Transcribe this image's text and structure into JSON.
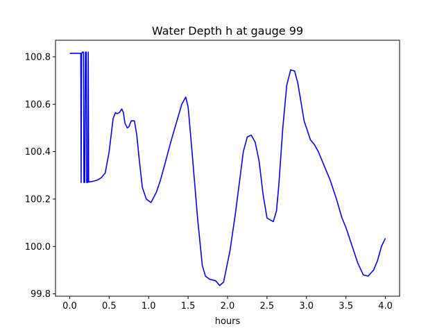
{
  "chart_data": {
    "type": "line",
    "title": "Water Depth h at gauge 99",
    "xlabel": "hours",
    "ylabel": "",
    "xlim": [
      -0.18,
      4.18
    ],
    "ylim": [
      99.79,
      100.87
    ],
    "xticks": [
      0.0,
      0.5,
      1.0,
      1.5,
      2.0,
      2.5,
      3.0,
      3.5,
      4.0
    ],
    "xtick_labels": [
      "0.0",
      "0.5",
      "1.0",
      "1.5",
      "2.0",
      "2.5",
      "3.0",
      "3.5",
      "4.0"
    ],
    "yticks": [
      99.8,
      100.0,
      100.2,
      100.4,
      100.6,
      100.8
    ],
    "ytick_labels": [
      "99.8",
      "100.0",
      "100.2",
      "100.4",
      "100.6",
      "100.8"
    ],
    "grid": false,
    "color": "#0000ff",
    "series": [
      {
        "name": "",
        "x": [
          0.0,
          0.14,
          0.145,
          0.15,
          0.155,
          0.16,
          0.175,
          0.18,
          0.19,
          0.2,
          0.21,
          0.215,
          0.23,
          0.235,
          0.24,
          0.3,
          0.35,
          0.4,
          0.45,
          0.5,
          0.55,
          0.58,
          0.6,
          0.63,
          0.66,
          0.68,
          0.7,
          0.73,
          0.75,
          0.78,
          0.82,
          0.85,
          0.88,
          0.92,
          0.97,
          1.03,
          1.1,
          1.15,
          1.2,
          1.28,
          1.35,
          1.42,
          1.47,
          1.5,
          1.55,
          1.62,
          1.68,
          1.72,
          1.77,
          1.85,
          1.9,
          1.95,
          2.03,
          2.1,
          2.2,
          2.25,
          2.3,
          2.35,
          2.4,
          2.45,
          2.5,
          2.55,
          2.58,
          2.62,
          2.65,
          2.7,
          2.75,
          2.8,
          2.85,
          2.89,
          2.93,
          2.97,
          3.05,
          3.1,
          3.15,
          3.2,
          3.25,
          3.3,
          3.38,
          3.45,
          3.5,
          3.6,
          3.65,
          3.72,
          3.78,
          3.85,
          3.9,
          3.95,
          4.0
        ],
        "values": [
          100.815,
          100.815,
          100.27,
          100.815,
          100.815,
          100.82,
          100.82,
          100.27,
          100.27,
          100.82,
          100.82,
          100.27,
          100.27,
          100.82,
          100.272,
          100.275,
          100.28,
          100.29,
          100.31,
          100.4,
          100.54,
          100.565,
          100.56,
          100.565,
          100.58,
          100.565,
          100.52,
          100.5,
          100.505,
          100.53,
          100.53,
          100.47,
          100.37,
          100.25,
          100.2,
          100.185,
          100.23,
          100.28,
          100.34,
          100.44,
          100.52,
          100.6,
          100.63,
          100.59,
          100.4,
          100.12,
          99.92,
          99.875,
          99.862,
          99.855,
          99.835,
          99.85,
          99.98,
          100.14,
          100.4,
          100.462,
          100.47,
          100.44,
          100.36,
          100.22,
          100.12,
          100.11,
          100.105,
          100.15,
          100.26,
          100.5,
          100.68,
          100.745,
          100.74,
          100.69,
          100.61,
          100.53,
          100.45,
          100.43,
          100.4,
          100.36,
          100.32,
          100.28,
          100.2,
          100.12,
          100.08,
          99.98,
          99.93,
          99.88,
          99.875,
          99.9,
          99.94,
          100.0,
          100.035
        ]
      }
    ]
  }
}
